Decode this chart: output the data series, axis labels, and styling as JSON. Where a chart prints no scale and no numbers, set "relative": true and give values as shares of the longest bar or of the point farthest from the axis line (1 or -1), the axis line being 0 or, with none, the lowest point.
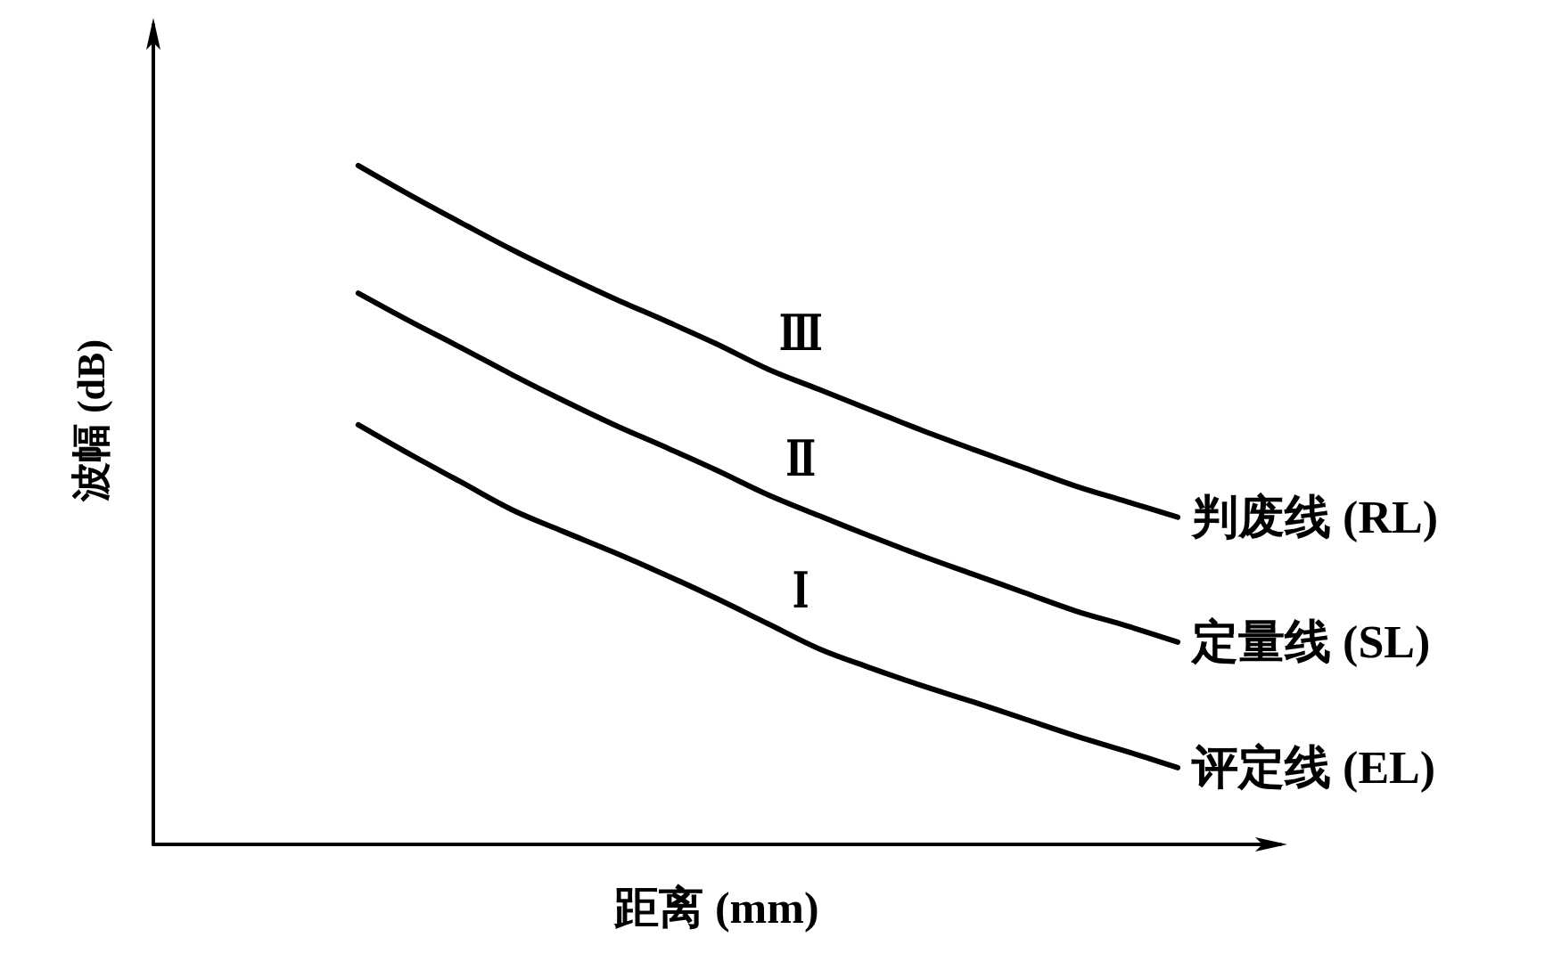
{
  "chart_data": {
    "type": "line",
    "xlabel": "距离 (mm)",
    "ylabel": "波幅 (dB)",
    "relative": true,
    "marker": "none",
    "line_style": "solid",
    "categories": [
      null,
      null,
      null,
      null,
      null,
      null,
      null,
      null,
      null,
      null,
      null,
      null,
      null,
      null,
      null,
      null,
      null,
      null,
      null,
      null,
      null,
      null,
      null
    ],
    "series": [
      {
        "name": "判废线 (RL)",
        "color": "#000000",
        "values": [
          null,
          null,
          null,
          null,
          1,
          0.957,
          0.916,
          0.876,
          0.839,
          0.804,
          0.771,
          0.737,
          0.7,
          0.67,
          0.64,
          0.61,
          0.582,
          0.555,
          0.528,
          0.505,
          0.482,
          null,
          null
        ]
      },
      {
        "name": "定量线 (SL)",
        "color": "#000000",
        "values": [
          null,
          null,
          null,
          null,
          0.812,
          0.771,
          0.732,
          0.692,
          0.654,
          0.618,
          0.585,
          0.551,
          0.515,
          0.484,
          0.454,
          0.425,
          0.398,
          0.371,
          0.344,
          0.322,
          0.298,
          null,
          null
        ]
      },
      {
        "name": "评定线 (EL)",
        "color": "#000000",
        "values": [
          null,
          null,
          null,
          null,
          0.618,
          0.575,
          0.534,
          0.493,
          0.461,
          0.43,
          0.397,
          0.362,
          0.325,
          0.288,
          0.26,
          0.234,
          0.21,
          0.185,
          0.16,
          0.137,
          0.113,
          null,
          null
        ]
      }
    ],
    "annotations": [
      "Ⅲ",
      "Ⅱ",
      "Ⅰ"
    ]
  }
}
